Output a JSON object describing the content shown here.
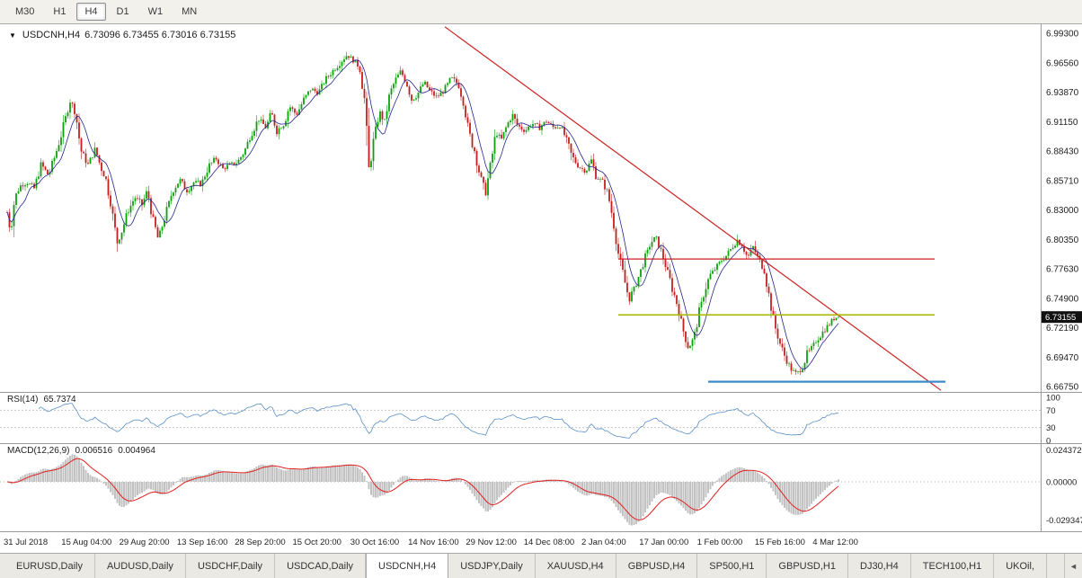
{
  "toolbar": {
    "timeframes": [
      {
        "label": "M30",
        "active": false
      },
      {
        "label": "H1",
        "active": false
      },
      {
        "label": "H4",
        "active": true
      },
      {
        "label": "D1",
        "active": false
      },
      {
        "label": "W1",
        "active": false
      },
      {
        "label": "MN",
        "active": false
      }
    ]
  },
  "chart_data": {
    "type": "candlestick",
    "symbol": "USDCNH",
    "timeframe": "H4",
    "title": "USDCNH,H4",
    "ohlc_text": "6.73096 6.73455 6.73016 6.73155",
    "open": "6.73096",
    "high": "6.73455",
    "low": "6.73016",
    "close": "6.73155",
    "current_price": "6.73155",
    "dropdown_arrow": "▼",
    "y_ticks": [
      "6.99300",
      "6.96560",
      "6.93870",
      "6.91150",
      "6.88430",
      "6.85710",
      "6.83000",
      "6.80350",
      "6.77630",
      "6.74900",
      "6.72190",
      "6.69470",
      "6.66750"
    ],
    "x_labels": [
      "31 Jul 2018",
      "15 Aug 04:00",
      "29 Aug 20:00",
      "13 Sep 16:00",
      "28 Sep 20:00",
      "15 Oct 20:00",
      "30 Oct 16:00",
      "14 Nov 16:00",
      "29 Nov 12:00",
      "14 Dec 08:00",
      "2 Jan 04:00",
      "17 Jan 00:00",
      "1 Feb 00:00",
      "15 Feb 16:00",
      "4 Mar 12:00"
    ],
    "price_anchors": [
      [
        8,
        6.828
      ],
      [
        12,
        6.81
      ],
      [
        16,
        6.84
      ],
      [
        22,
        6.852
      ],
      [
        30,
        6.856
      ],
      [
        38,
        6.85
      ],
      [
        46,
        6.872
      ],
      [
        54,
        6.862
      ],
      [
        62,
        6.882
      ],
      [
        70,
        6.905
      ],
      [
        78,
        6.932
      ],
      [
        84,
        6.92
      ],
      [
        90,
        6.885
      ],
      [
        98,
        6.872
      ],
      [
        106,
        6.886
      ],
      [
        112,
        6.87
      ],
      [
        118,
        6.858
      ],
      [
        124,
        6.833
      ],
      [
        130,
        6.8
      ],
      [
        136,
        6.812
      ],
      [
        142,
        6.828
      ],
      [
        150,
        6.842
      ],
      [
        158,
        6.835
      ],
      [
        164,
        6.848
      ],
      [
        170,
        6.822
      ],
      [
        176,
        6.803
      ],
      [
        184,
        6.825
      ],
      [
        192,
        6.848
      ],
      [
        200,
        6.858
      ],
      [
        208,
        6.848
      ],
      [
        216,
        6.856
      ],
      [
        224,
        6.854
      ],
      [
        232,
        6.87
      ],
      [
        240,
        6.878
      ],
      [
        248,
        6.868
      ],
      [
        256,
        6.872
      ],
      [
        264,
        6.874
      ],
      [
        272,
        6.884
      ],
      [
        280,
        6.902
      ],
      [
        288,
        6.914
      ],
      [
        296,
        6.906
      ],
      [
        302,
        6.92
      ],
      [
        308,
        6.903
      ],
      [
        316,
        6.91
      ],
      [
        322,
        6.926
      ],
      [
        330,
        6.918
      ],
      [
        338,
        6.932
      ],
      [
        346,
        6.942
      ],
      [
        354,
        6.938
      ],
      [
        362,
        6.95
      ],
      [
        370,
        6.958
      ],
      [
        378,
        6.966
      ],
      [
        386,
        6.973
      ],
      [
        394,
        6.968
      ],
      [
        400,
        6.962
      ],
      [
        406,
        6.93
      ],
      [
        410,
        6.862
      ],
      [
        416,
        6.895
      ],
      [
        422,
        6.92
      ],
      [
        428,
        6.912
      ],
      [
        434,
        6.938
      ],
      [
        440,
        6.95
      ],
      [
        446,
        6.958
      ],
      [
        452,
        6.948
      ],
      [
        458,
        6.932
      ],
      [
        464,
        6.936
      ],
      [
        472,
        6.948
      ],
      [
        478,
        6.94
      ],
      [
        486,
        6.934
      ],
      [
        494,
        6.94
      ],
      [
        502,
        6.952
      ],
      [
        510,
        6.946
      ],
      [
        516,
        6.928
      ],
      [
        522,
        6.9
      ],
      [
        528,
        6.885
      ],
      [
        534,
        6.862
      ],
      [
        540,
        6.845
      ],
      [
        546,
        6.872
      ],
      [
        552,
        6.902
      ],
      [
        558,
        6.895
      ],
      [
        564,
        6.908
      ],
      [
        570,
        6.918
      ],
      [
        576,
        6.908
      ],
      [
        584,
        6.903
      ],
      [
        592,
        6.91
      ],
      [
        600,
        6.906
      ],
      [
        608,
        6.912
      ],
      [
        616,
        6.906
      ],
      [
        624,
        6.908
      ],
      [
        630,
        6.895
      ],
      [
        636,
        6.88
      ],
      [
        644,
        6.87
      ],
      [
        652,
        6.866
      ],
      [
        658,
        6.876
      ],
      [
        664,
        6.86
      ],
      [
        670,
        6.857
      ],
      [
        676,
        6.847
      ],
      [
        682,
        6.822
      ],
      [
        688,
        6.79
      ],
      [
        694,
        6.768
      ],
      [
        700,
        6.748
      ],
      [
        706,
        6.758
      ],
      [
        712,
        6.772
      ],
      [
        718,
        6.786
      ],
      [
        724,
        6.8
      ],
      [
        730,
        6.805
      ],
      [
        736,
        6.792
      ],
      [
        742,
        6.775
      ],
      [
        748,
        6.758
      ],
      [
        754,
        6.742
      ],
      [
        760,
        6.72
      ],
      [
        766,
        6.703
      ],
      [
        772,
        6.712
      ],
      [
        778,
        6.735
      ],
      [
        784,
        6.756
      ],
      [
        790,
        6.77
      ],
      [
        796,
        6.776
      ],
      [
        802,
        6.783
      ],
      [
        808,
        6.788
      ],
      [
        814,
        6.795
      ],
      [
        820,
        6.803
      ],
      [
        826,
        6.797
      ],
      [
        832,
        6.786
      ],
      [
        838,
        6.796
      ],
      [
        844,
        6.785
      ],
      [
        850,
        6.776
      ],
      [
        856,
        6.75
      ],
      [
        862,
        6.724
      ],
      [
        868,
        6.707
      ],
      [
        874,
        6.694
      ],
      [
        880,
        6.684
      ],
      [
        886,
        6.679
      ],
      [
        892,
        6.684
      ],
      [
        898,
        6.697
      ],
      [
        904,
        6.704
      ],
      [
        910,
        6.712
      ],
      [
        916,
        6.718
      ],
      [
        922,
        6.724
      ],
      [
        928,
        6.73
      ],
      [
        934,
        6.7335
      ]
    ],
    "objects": {
      "trendline": {
        "x1": 495,
        "price1": 6.999,
        "x2": 1047,
        "price2": 6.664,
        "color": "#cc2222"
      },
      "hlines": [
        {
          "price": 6.785,
          "x1": 688,
          "x2": 1040,
          "color": "#cc2222",
          "width": 1.3
        },
        {
          "price": 6.7335,
          "x1": 688,
          "x2": 1040,
          "color": "#a8b800",
          "width": 1.6
        },
        {
          "price": 6.672,
          "x1": 788,
          "x2": 1052,
          "color": "#3c8ccc",
          "width": 2.2
        }
      ]
    },
    "colors": {
      "up": "#0ca10c",
      "down": "#c22020",
      "ma": "#24248c",
      "rsi_line": "#5a8fc4",
      "macd_hist": "#c2c2c2",
      "macd_signal": "#e02020",
      "badge_bg": "#111111",
      "badge_text": "#ffffff"
    },
    "rsi": {
      "label": "RSI(14)",
      "value": "65.7374",
      "levels": [
        "100",
        "70",
        "30",
        "0"
      ]
    },
    "macd": {
      "label": "MACD(12,26,9)",
      "value_main": "0.006516",
      "value_signal": "0.004964",
      "axis_labels": [
        "0.024372",
        "0.00000",
        "-0.029347"
      ]
    }
  },
  "tabs": {
    "items": [
      {
        "label": "EURUSD,Daily",
        "active": false
      },
      {
        "label": "AUDUSD,Daily",
        "active": false
      },
      {
        "label": "USDCHF,Daily",
        "active": false
      },
      {
        "label": "USDCAD,Daily",
        "active": false
      },
      {
        "label": "USDCNH,H4",
        "active": true
      },
      {
        "label": "USDJPY,Daily",
        "active": false
      },
      {
        "label": "XAUUSD,H4",
        "active": false
      },
      {
        "label": "GBPUSD,H4",
        "active": false
      },
      {
        "label": "SP500,H1",
        "active": false
      },
      {
        "label": "GBPUSD,H1",
        "active": false
      },
      {
        "label": "DJ30,H4",
        "active": false
      },
      {
        "label": "TECH100,H1",
        "active": false
      },
      {
        "label": "UKOil,",
        "active": false
      }
    ],
    "scroll_left": "◄"
  }
}
